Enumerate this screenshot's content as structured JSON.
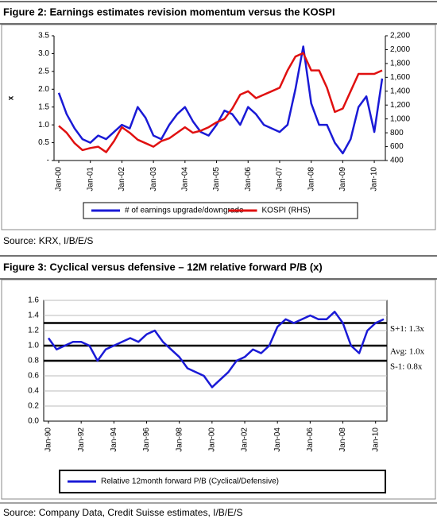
{
  "chart_data": [
    {
      "type": "line",
      "title": "Figure 2: Earnings estimates revision momentum versus the KOSPI",
      "ylabel": "x",
      "categories": [
        "Jan-00",
        null,
        null,
        null,
        "Jan-01",
        null,
        null,
        null,
        "Jan-02",
        null,
        null,
        null,
        "Jan-03",
        null,
        null,
        null,
        "Jan-04",
        null,
        null,
        null,
        "Jan-05",
        null,
        null,
        null,
        "Jan-06",
        null,
        null,
        null,
        "Jan-07",
        null,
        null,
        null,
        "Jan-08",
        null,
        null,
        null,
        "Jan-09",
        null,
        null,
        null,
        "Jan-10",
        null
      ],
      "series": [
        {
          "name": "# of earnings upgrade/downgrade",
          "color": "#1a1ad6",
          "values": [
            1.9,
            1.3,
            0.9,
            0.6,
            0.5,
            0.7,
            0.6,
            0.8,
            1.0,
            0.9,
            1.5,
            1.2,
            0.7,
            0.6,
            1.0,
            1.3,
            1.5,
            1.1,
            0.8,
            0.7,
            1.0,
            1.4,
            1.3,
            1.0,
            1.5,
            1.3,
            1.0,
            0.9,
            0.8,
            1.0,
            2.0,
            3.2,
            1.6,
            1.0,
            1.0,
            0.5,
            0.2,
            0.6,
            1.5,
            1.8,
            0.8,
            2.3
          ]
        },
        {
          "name": "KOSPI (RHS)",
          "color": "#e01010",
          "axis": "y2",
          "values": [
            900,
            800,
            650,
            550,
            580,
            600,
            520,
            680,
            880,
            800,
            700,
            650,
            600,
            680,
            720,
            800,
            880,
            800,
            830,
            880,
            950,
            1000,
            1150,
            1350,
            1400,
            1300,
            1350,
            1400,
            1450,
            1700,
            1900,
            1950,
            1700,
            1700,
            1450,
            1100,
            1150,
            1400,
            1650,
            1650,
            1650,
            1700
          ]
        }
      ],
      "ylim": [
        0,
        3.5
      ],
      "yticks": [
        {
          "value": 0,
          "label": "-"
        },
        0.5,
        {
          "value": 1,
          "label": "1.0"
        },
        1.5,
        {
          "value": 2,
          "label": "2.0"
        },
        2.5,
        {
          "value": 3,
          "label": "3.0"
        },
        3.5
      ],
      "y2lim": [
        400,
        2200
      ],
      "y2ticks": [
        400,
        600,
        800,
        {
          "value": 1000,
          "label": "1,000"
        },
        {
          "value": 1200,
          "label": "1,200"
        },
        {
          "value": 1400,
          "label": "1,400"
        },
        {
          "value": 1600,
          "label": "1,600"
        },
        {
          "value": 1800,
          "label": "1,800"
        },
        {
          "value": 2000,
          "label": "2,000"
        },
        {
          "value": 2200,
          "label": "2,200"
        }
      ],
      "grid": false,
      "source": "Source: KRX, I/B/E/S"
    },
    {
      "type": "line",
      "title": "Figure 3: Cyclical versus defensive – 12M relative forward P/B (x)",
      "categories": [
        "Jan-90",
        null,
        null,
        null,
        "Jan-92",
        null,
        null,
        null,
        "Jan-94",
        null,
        null,
        null,
        "Jan-96",
        null,
        null,
        null,
        "Jan-98",
        null,
        null,
        null,
        "Jan-00",
        null,
        null,
        null,
        "Jan-02",
        null,
        null,
        null,
        "Jan-04",
        null,
        null,
        null,
        "Jan-06",
        null,
        null,
        null,
        "Jan-08",
        null,
        null,
        null,
        "Jan-10",
        null
      ],
      "series": [
        {
          "name": "Relative 12month forward P/B (Cyclical/Defensive)",
          "color": "#1a1ad6",
          "values": [
            1.1,
            0.95,
            1.0,
            1.05,
            1.05,
            1.0,
            0.8,
            0.95,
            1.0,
            1.05,
            1.1,
            1.05,
            1.15,
            1.2,
            1.05,
            0.95,
            0.85,
            0.7,
            0.65,
            0.6,
            0.45,
            0.55,
            0.65,
            0.8,
            0.85,
            0.95,
            0.9,
            1.0,
            1.25,
            1.35,
            1.3,
            1.35,
            1.4,
            1.35,
            1.35,
            1.45,
            1.3,
            1.0,
            0.9,
            1.2,
            1.3,
            1.35
          ]
        }
      ],
      "ylim": [
        0,
        1.6
      ],
      "yticks": [
        {
          "value": 0,
          "label": "0.0"
        },
        0.2,
        0.4,
        0.6,
        0.8,
        {
          "value": 1,
          "label": "1.0"
        },
        1.2,
        1.4,
        1.6
      ],
      "grid": true,
      "reference_lines": [
        {
          "value": 1.3,
          "label": "S+1: 1.3x"
        },
        {
          "value": 1.0,
          "label": "Avg: 1.0x"
        },
        {
          "value": 0.8,
          "label": "S-1: 0.8x"
        }
      ],
      "source": "Source: Company Data, Credit Suisse estimates, I/B/E/S"
    }
  ]
}
